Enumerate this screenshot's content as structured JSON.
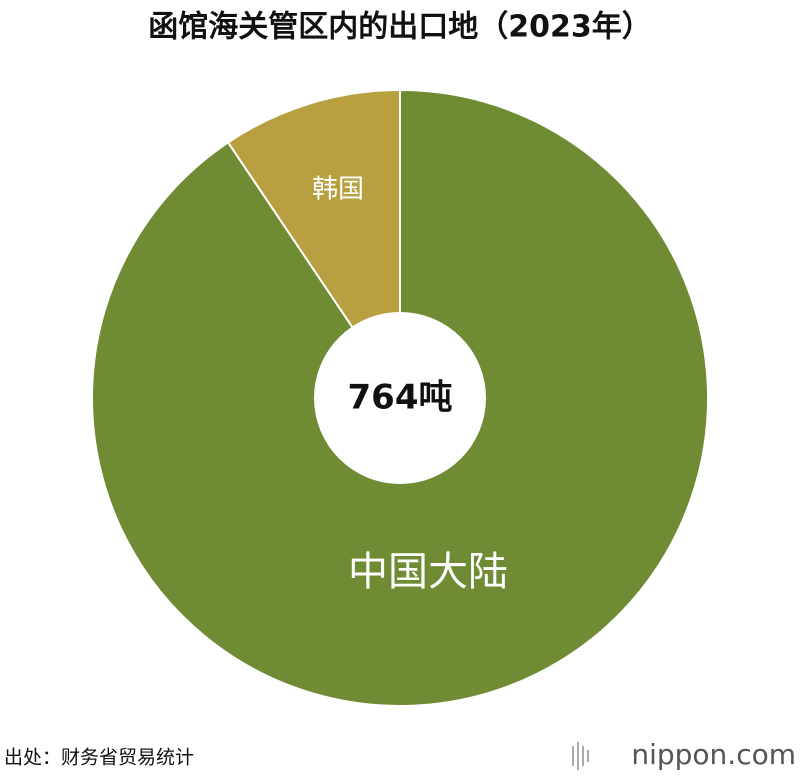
{
  "chart_data": {
    "type": "donut",
    "title": "函馆海关管区内的出口地（2023年）",
    "center_label": "764吨",
    "categories": [
      "中国大陆",
      "韩国"
    ],
    "values": [
      692,
      72
    ],
    "colors": [
      "#6f8b33",
      "#b8a040"
    ],
    "source": "出处：财务省贸易统计",
    "logo": "nippon.com"
  }
}
